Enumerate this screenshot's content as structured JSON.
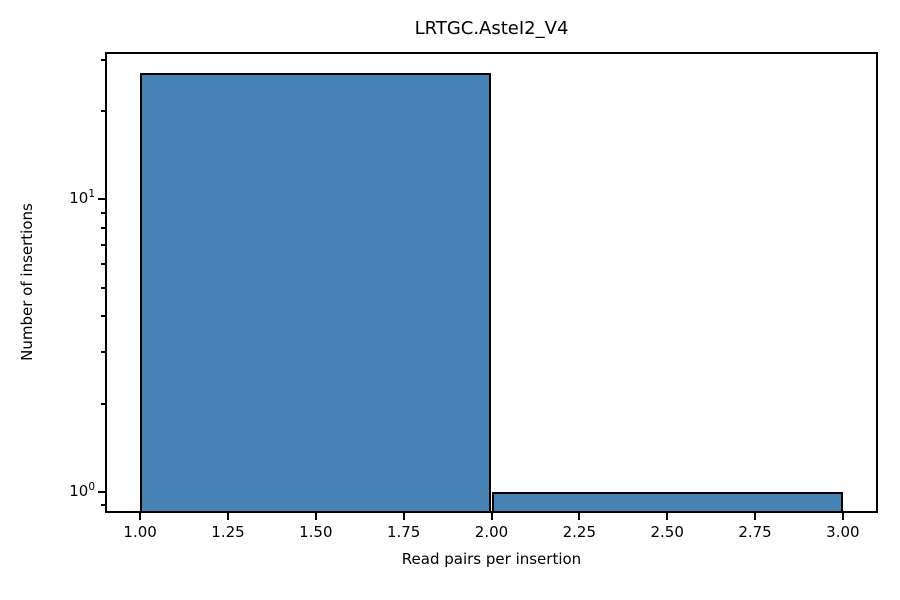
{
  "chart_data": {
    "type": "bar",
    "subtype": "histogram",
    "title": "LRTGC.AsteI2_V4",
    "xlabel": "Read pairs per insertion",
    "ylabel": "Number of insertions",
    "yscale": "log",
    "grid": false,
    "legend": null,
    "bins": [
      {
        "x_start": 1.0,
        "x_end": 2.0,
        "count": 27
      },
      {
        "x_start": 2.0,
        "x_end": 3.0,
        "count": 1
      }
    ],
    "xticks": [
      1.0,
      1.25,
      1.5,
      1.75,
      2.0,
      2.25,
      2.5,
      2.75,
      3.0
    ],
    "xtick_labels": [
      "1.00",
      "1.25",
      "1.50",
      "1.75",
      "2.00",
      "2.25",
      "2.50",
      "2.75",
      "3.00"
    ],
    "ytick_major": [
      1,
      10
    ],
    "ytick_major_labels": [
      {
        "base": "10",
        "exp": "0"
      },
      {
        "base": "10",
        "exp": "1"
      }
    ],
    "ytick_minor": [
      0.9,
      2,
      3,
      4,
      5,
      6,
      7,
      8,
      9,
      20,
      30
    ],
    "xlim": [
      0.9,
      3.1
    ],
    "ylim": [
      0.848,
      31.9
    ],
    "bar_color": "#4682b4",
    "bar_edge_color": "#000000",
    "axis_color": "#000000",
    "background_color": "#ffffff"
  }
}
